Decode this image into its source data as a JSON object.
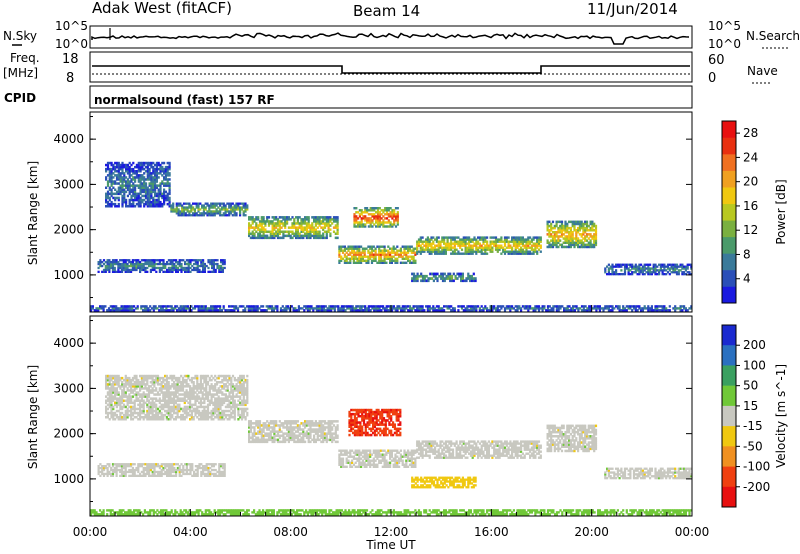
{
  "header": {
    "station": "Adak West (fitACF)",
    "beam": "Beam 14",
    "date": "11/Jun/2014"
  },
  "panels": {
    "nsky_label": "N.Sky",
    "nsearch_label": "N.Search",
    "nsky_ticks": [
      "10^5",
      "10^0"
    ],
    "nsearch_ticks": [
      "10^5",
      "10^0"
    ],
    "freq_label": "Freq.",
    "freq_unit": "[MHz]",
    "freq_ticks": [
      "18",
      "8"
    ],
    "nave_label": "Nave",
    "nave_ticks": [
      "60",
      "0"
    ],
    "cpid_label": "CPID",
    "cpid_text": "normalsound (fast) 157 RF"
  },
  "chart_data": [
    {
      "type": "heatmap",
      "name": "power",
      "ylabel": "Slant Range [km]",
      "xlabel": "",
      "ylim": [
        180,
        4600
      ],
      "yticks": [
        "1000",
        "2000",
        "3000",
        "4000"
      ],
      "colorbar": {
        "label": "Power [dB]",
        "ticks": [
          "4",
          "8",
          "12",
          "16",
          "20",
          "24",
          "28"
        ],
        "colors": [
          "#1a1ae0",
          "#2a4fb8",
          "#3a7a9a",
          "#4a9a6a",
          "#7ab040",
          "#b8c820",
          "#f0c810",
          "#f0a020",
          "#f07020",
          "#e83010",
          "#e81010"
        ]
      },
      "bands": [
        {
          "t0": 0.3,
          "t1": 5.4,
          "r0": 1050,
          "r1": 1350,
          "v": 8
        },
        {
          "t0": 0.6,
          "t1": 3.2,
          "r0": 2500,
          "r1": 3500,
          "v": 7
        },
        {
          "t0": 3.2,
          "t1": 6.3,
          "r0": 2300,
          "r1": 2600,
          "v": 12
        },
        {
          "t0": 6.3,
          "t1": 9.9,
          "r0": 1800,
          "r1": 2300,
          "v": 18
        },
        {
          "t0": 9.9,
          "t1": 13.0,
          "r0": 1250,
          "r1": 1650,
          "v": 22
        },
        {
          "t0": 10.5,
          "t1": 12.3,
          "r0": 2050,
          "r1": 2500,
          "v": 26
        },
        {
          "t0": 13.0,
          "t1": 18.0,
          "r0": 1450,
          "r1": 1850,
          "v": 19
        },
        {
          "t0": 12.8,
          "t1": 15.4,
          "r0": 850,
          "r1": 1050,
          "v": 12
        },
        {
          "t0": 18.2,
          "t1": 20.2,
          "r0": 1600,
          "r1": 2200,
          "v": 20
        },
        {
          "t0": 20.5,
          "t1": 24.0,
          "r0": 1000,
          "r1": 1250,
          "v": 8
        },
        {
          "t0": 0.0,
          "t1": 24.0,
          "r0": 200,
          "r1": 330,
          "v": 8
        }
      ]
    },
    {
      "type": "heatmap",
      "name": "velocity",
      "ylabel": "Slant Range [km]",
      "xlabel": "Time UT",
      "ylim": [
        180,
        4600
      ],
      "yticks": [
        "1000",
        "2000",
        "3000",
        "4000"
      ],
      "xticks": [
        "00:00",
        "04:00",
        "08:00",
        "12:00",
        "16:00",
        "20:00",
        "00:00"
      ],
      "xlim": [
        0,
        24
      ],
      "colorbar": {
        "label": "Velocity [m s^-1]",
        "ticks": [
          "200",
          "100",
          "50",
          "15",
          "-15",
          "-50",
          "-100",
          "-200"
        ],
        "colors": [
          "#1a2ad0",
          "#2a70c0",
          "#3aa060",
          "#70c838",
          "#c8c8c0",
          "#f0c810",
          "#f09020",
          "#f04010",
          "#e81010"
        ]
      },
      "bands": [
        {
          "t0": 0.3,
          "t1": 5.4,
          "r0": 1050,
          "r1": 1350,
          "v": 0
        },
        {
          "t0": 0.6,
          "t1": 6.3,
          "r0": 2300,
          "r1": 3300,
          "v": 0
        },
        {
          "t0": 6.3,
          "t1": 9.9,
          "r0": 1800,
          "r1": 2300,
          "v": 0
        },
        {
          "t0": 9.9,
          "t1": 13.0,
          "r0": 1250,
          "r1": 1650,
          "v": 0
        },
        {
          "t0": 10.3,
          "t1": 12.4,
          "r0": 1950,
          "r1": 2550,
          "v": -200
        },
        {
          "t0": 13.0,
          "t1": 18.0,
          "r0": 1450,
          "r1": 1850,
          "v": 0
        },
        {
          "t0": 12.8,
          "t1": 15.4,
          "r0": 800,
          "r1": 1050,
          "v": -40
        },
        {
          "t0": 18.2,
          "t1": 20.2,
          "r0": 1600,
          "r1": 2200,
          "v": 0
        },
        {
          "t0": 20.5,
          "t1": 24.0,
          "r0": 1000,
          "r1": 1250,
          "v": 0
        },
        {
          "t0": 0.0,
          "t1": 24.0,
          "r0": 200,
          "r1": 330,
          "v": 30
        }
      ]
    }
  ]
}
